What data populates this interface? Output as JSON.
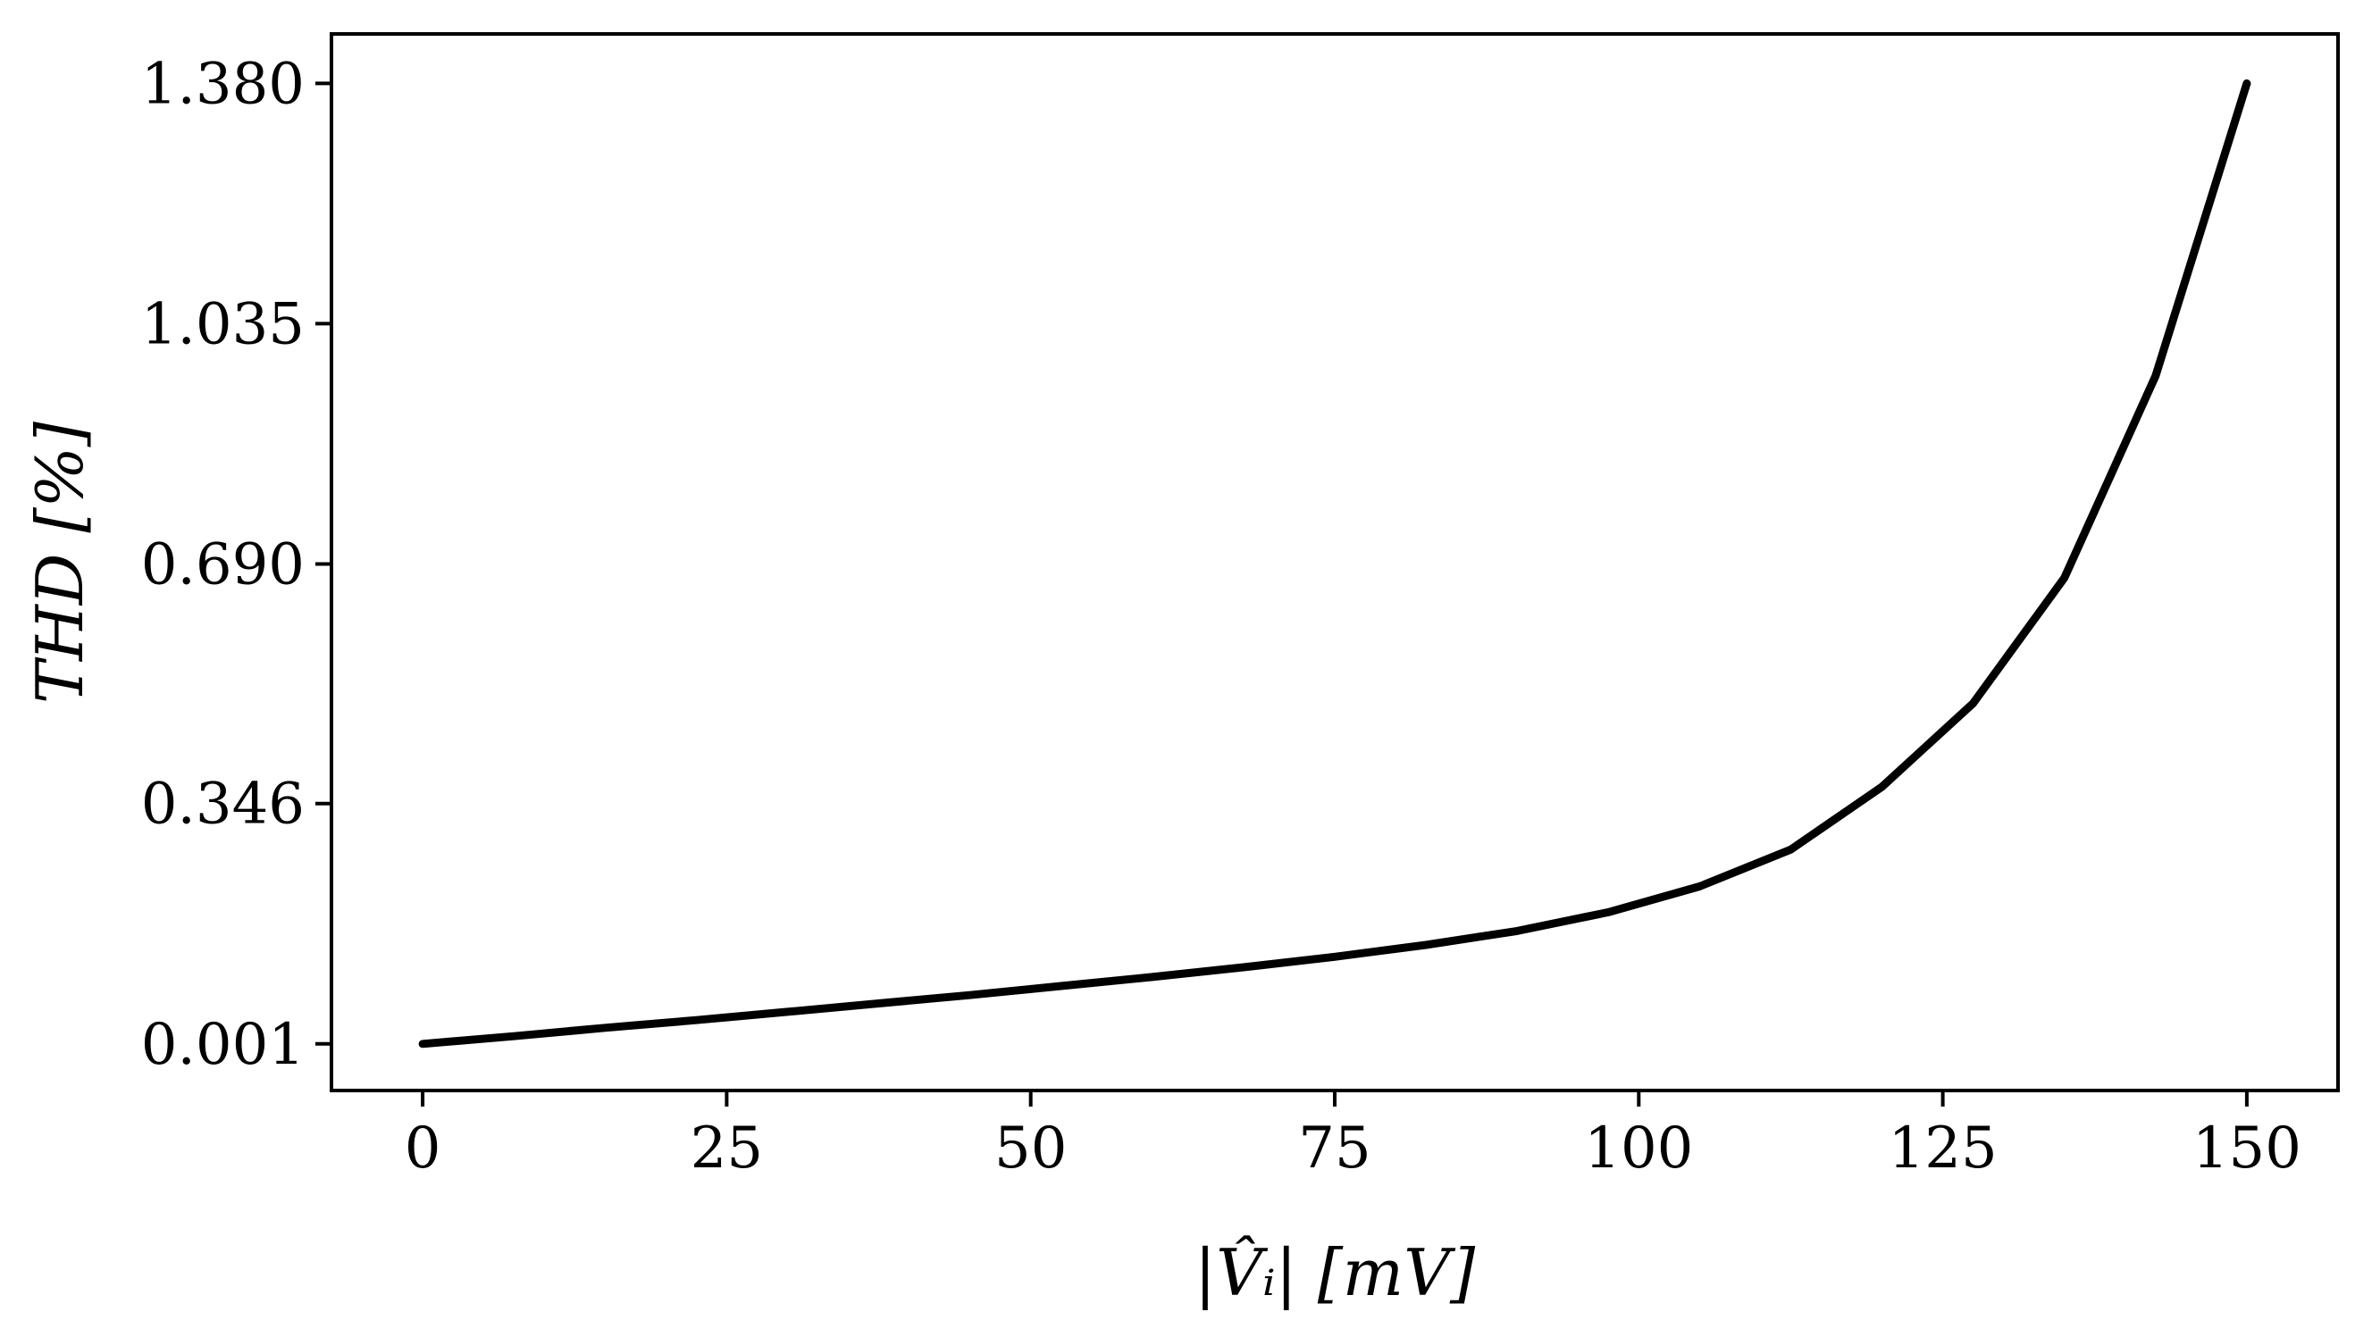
{
  "chart_data": {
    "type": "line",
    "title": "",
    "xlabel": "|V̂ᵢ| [mV]",
    "ylabel": "THD [%]",
    "xlim": [
      -7.5,
      157.5
    ],
    "ylim": [
      -0.066,
      1.451
    ],
    "x_ticks": [
      0,
      25,
      50,
      75,
      100,
      125,
      150
    ],
    "x_tick_labels": [
      "0",
      "25",
      "50",
      "75",
      "100",
      "125",
      "150"
    ],
    "y_ticks": [
      0.001,
      0.346,
      0.69,
      1.035,
      1.38
    ],
    "y_tick_labels": [
      "0.001",
      "0.346",
      "0.690",
      "1.035",
      "1.380"
    ],
    "grid": false,
    "line_color": "#000000",
    "series": [
      {
        "x": [
          0,
          7.5,
          15,
          22.5,
          30,
          37.5,
          45,
          52.5,
          60,
          67.5,
          75,
          82.5,
          90,
          97.5,
          105,
          112.5,
          120,
          127.5,
          135,
          142.5,
          150
        ],
        "values": [
          0.001,
          0.012,
          0.024,
          0.035,
          0.047,
          0.059,
          0.071,
          0.084,
          0.097,
          0.111,
          0.126,
          0.143,
          0.163,
          0.19,
          0.227,
          0.28,
          0.37,
          0.49,
          0.67,
          0.96,
          1.38
        ]
      }
    ]
  }
}
